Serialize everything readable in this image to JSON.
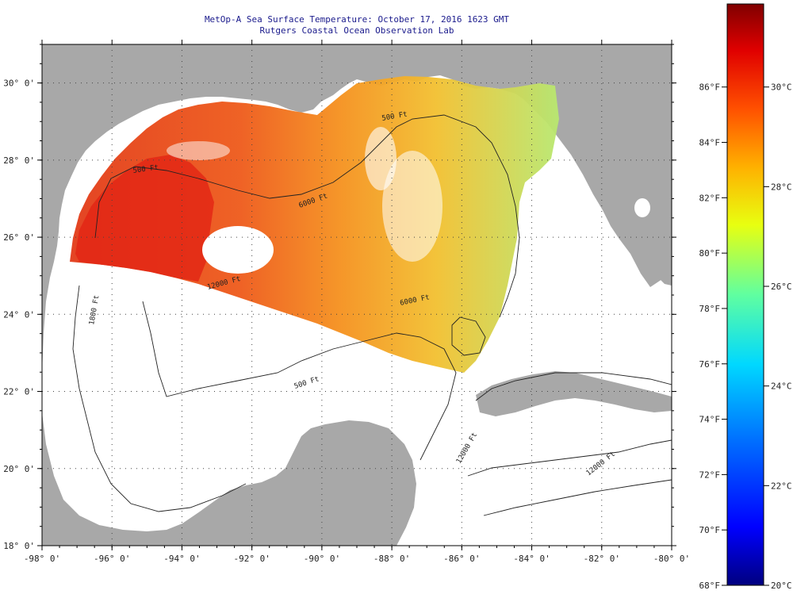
{
  "title_line1": "MetOp-A Sea Surface Temperature:  October 17, 2016 1623 GMT",
  "title_line2": "Rutgers Coastal Ocean Observation Lab",
  "x_ticks": [
    {
      "value": -98,
      "label": "-98° 0'"
    },
    {
      "value": -96,
      "label": "-96° 0'"
    },
    {
      "value": -94,
      "label": "-94° 0'"
    },
    {
      "value": -92,
      "label": "-92° 0'"
    },
    {
      "value": -90,
      "label": "-90° 0'"
    },
    {
      "value": -88,
      "label": "-88° 0'"
    },
    {
      "value": -86,
      "label": "-86° 0'"
    },
    {
      "value": -84,
      "label": "-84° 0'"
    },
    {
      "value": -82,
      "label": "-82° 0'"
    },
    {
      "value": -80,
      "label": "-80° 0'"
    }
  ],
  "y_ticks": [
    {
      "value": 18,
      "label": "18° 0'"
    },
    {
      "value": 20,
      "label": "20° 0'"
    },
    {
      "value": 22,
      "label": "22° 0'"
    },
    {
      "value": 24,
      "label": "24° 0'"
    },
    {
      "value": 26,
      "label": "26° 0'"
    },
    {
      "value": 28,
      "label": "28° 0'"
    },
    {
      "value": 30,
      "label": "30° 0'"
    }
  ],
  "lon_range": [
    -98,
    -80
  ],
  "lat_range": [
    18,
    31
  ],
  "colorbar": {
    "min_f": 68,
    "max_f": 89,
    "fahrenheit_ticks": [
      {
        "value": 68,
        "label": "68°F"
      },
      {
        "value": 70,
        "label": "70°F"
      },
      {
        "value": 72,
        "label": "72°F"
      },
      {
        "value": 74,
        "label": "74°F"
      },
      {
        "value": 76,
        "label": "76°F"
      },
      {
        "value": 78,
        "label": "78°F"
      },
      {
        "value": 80,
        "label": "80°F"
      },
      {
        "value": 82,
        "label": "82°F"
      },
      {
        "value": 84,
        "label": "84°F"
      },
      {
        "value": 86,
        "label": "86°F"
      }
    ],
    "celsius_ticks": [
      {
        "value": 20,
        "label": "20°C"
      },
      {
        "value": 22,
        "label": "22°C"
      },
      {
        "value": 24,
        "label": "24°C"
      },
      {
        "value": 26,
        "label": "26°C"
      },
      {
        "value": 28,
        "label": "28°C"
      },
      {
        "value": 30,
        "label": "30°C"
      }
    ]
  },
  "contour_labels": {
    "c500a": "500 Ft",
    "c500b": "500 Ft",
    "c500c": "500 Ft",
    "c6000a": "6000 Ft",
    "c6000b": "6000 Ft",
    "c12000a": "12000 Ft",
    "c12000b": "12000 Ft",
    "c12000c": "12000 Ft",
    "c1800": "1800 Ft"
  },
  "colors": {
    "land": "#a8a8a8",
    "ocean_nodata": "#ffffff",
    "title": "#1a1a8c",
    "sst_warm": "#e8401c",
    "sst_mid": "#f58a1e",
    "sst_cool": "#e6e43a"
  }
}
